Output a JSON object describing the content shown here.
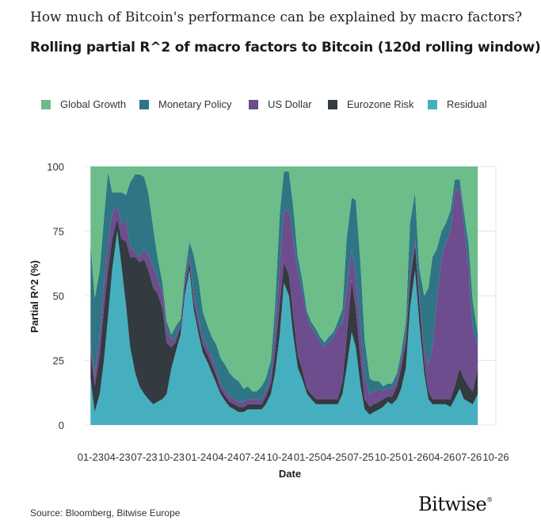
{
  "header": {
    "supertitle": "How much of Bitcoin's performance can be explained by macro factors?",
    "title": "Rolling partial R^2 of macro factors to Bitcoin (120d rolling window)"
  },
  "footer": {
    "source": "Source: Bloomberg, Bitwise Europe",
    "logo_text": "Bitwise",
    "logo_mark": "®"
  },
  "colors": {
    "Global Growth": "#6cbd8a",
    "Monetary Policy": "#2e7585",
    "US Dollar": "#6d4d8e",
    "Eurozone Risk": "#333a40",
    "Residual": "#45afc0"
  },
  "chart_data": {
    "type": "area",
    "title": "Rolling partial R^2 of macro factors to Bitcoin (120d rolling window)",
    "xlabel": "Date",
    "ylabel": "Partial R^2 (%)",
    "ylim": [
      0,
      100
    ],
    "yticks": [
      0,
      25,
      50,
      75,
      100
    ],
    "xlim": [
      "2022-12-15",
      "2026-10-01"
    ],
    "xtick_labels": [
      "01-23",
      "04-23",
      "07-23",
      "10-23",
      "01-24",
      "04-24",
      "07-24",
      "10-24",
      "01-25",
      "04-25",
      "07-25",
      "10-25",
      "01-26",
      "04-26",
      "07-26",
      "10-26"
    ],
    "xtick_dates": [
      "2023-01-01",
      "2023-04-01",
      "2023-07-01",
      "2023-10-01",
      "2024-01-01",
      "2024-04-01",
      "2024-07-01",
      "2024-10-01",
      "2025-01-01",
      "2025-04-01",
      "2025-07-01",
      "2025-10-01",
      "2026-01-01",
      "2026-04-01",
      "2026-07-01",
      "2026-10-01"
    ],
    "grid": true,
    "stacked": true,
    "legend_position": "top",
    "x": [
      "2023-01-01",
      "2023-01-15",
      "2023-02-01",
      "2023-02-15",
      "2023-03-01",
      "2023-03-15",
      "2023-04-01",
      "2023-04-15",
      "2023-05-01",
      "2023-05-15",
      "2023-06-01",
      "2023-06-15",
      "2023-07-01",
      "2023-07-15",
      "2023-08-01",
      "2023-08-15",
      "2023-09-01",
      "2023-09-15",
      "2023-10-01",
      "2023-10-15",
      "2023-11-01",
      "2023-11-15",
      "2023-12-01",
      "2023-12-15",
      "2024-01-01",
      "2024-01-15",
      "2024-02-01",
      "2024-02-15",
      "2024-03-01",
      "2024-03-15",
      "2024-04-01",
      "2024-04-15",
      "2024-05-01",
      "2024-05-15",
      "2024-06-01",
      "2024-06-15",
      "2024-07-01",
      "2024-07-15",
      "2024-08-01",
      "2024-08-15",
      "2024-09-01",
      "2024-09-15",
      "2024-10-01",
      "2024-10-15",
      "2024-11-01",
      "2024-11-15",
      "2024-12-01",
      "2024-12-15",
      "2025-01-01",
      "2025-01-15",
      "2025-02-01",
      "2025-02-15",
      "2025-03-01",
      "2025-03-15",
      "2025-04-01",
      "2025-04-15",
      "2025-05-01",
      "2025-05-15",
      "2025-06-01",
      "2025-06-15",
      "2025-07-01",
      "2025-07-15",
      "2025-08-01",
      "2025-08-15",
      "2025-09-01",
      "2025-09-15",
      "2025-10-01",
      "2025-10-15",
      "2025-11-01",
      "2025-11-15",
      "2025-12-01",
      "2025-12-15",
      "2026-01-01",
      "2026-01-15",
      "2026-02-01",
      "2026-02-15",
      "2026-03-01",
      "2026-03-15",
      "2026-04-01",
      "2026-04-15",
      "2026-05-01",
      "2026-05-15",
      "2026-06-01",
      "2026-06-15",
      "2026-07-01",
      "2026-07-15",
      "2026-08-01"
    ],
    "series": [
      {
        "name": "Residual",
        "values": [
          18,
          5,
          12,
          25,
          42,
          60,
          75,
          62,
          46,
          30,
          20,
          15,
          12,
          10,
          8,
          9,
          10,
          12,
          22,
          28,
          35,
          50,
          60,
          45,
          35,
          28,
          24,
          20,
          16,
          12,
          9,
          7,
          6,
          5,
          5,
          6,
          6,
          6,
          6,
          8,
          12,
          20,
          35,
          55,
          50,
          35,
          22,
          18,
          12,
          10,
          8,
          8,
          8,
          8,
          8,
          8,
          12,
          22,
          36,
          30,
          15,
          6,
          4,
          5,
          6,
          7,
          9,
          8,
          10,
          14,
          22,
          45,
          60,
          40,
          20,
          10,
          8,
          8,
          8,
          8,
          7,
          10,
          14,
          10,
          9,
          8,
          12
        ]
      },
      {
        "name": "Eurozone Risk",
        "values": [
          10,
          10,
          15,
          20,
          18,
          12,
          5,
          10,
          25,
          35,
          45,
          48,
          52,
          50,
          45,
          42,
          35,
          20,
          8,
          4,
          3,
          3,
          3,
          3,
          3,
          3,
          3,
          3,
          3,
          2,
          2,
          2,
          2,
          2,
          2,
          2,
          2,
          2,
          2,
          3,
          4,
          8,
          12,
          8,
          8,
          8,
          5,
          4,
          2,
          2,
          2,
          2,
          2,
          2,
          2,
          2,
          5,
          12,
          20,
          15,
          10,
          4,
          3,
          3,
          3,
          3,
          2,
          3,
          5,
          8,
          10,
          10,
          10,
          8,
          5,
          3,
          2,
          2,
          2,
          2,
          3,
          5,
          8,
          8,
          6,
          5,
          10
        ]
      },
      {
        "name": "US Dollar",
        "values": [
          4,
          4,
          8,
          10,
          10,
          10,
          5,
          6,
          8,
          4,
          2,
          2,
          4,
          6,
          8,
          6,
          6,
          5,
          3,
          2,
          1,
          2,
          3,
          3,
          3,
          3,
          3,
          3,
          2,
          2,
          2,
          2,
          2,
          2,
          2,
          2,
          2,
          2,
          2,
          2,
          3,
          8,
          15,
          20,
          25,
          30,
          32,
          30,
          28,
          26,
          25,
          22,
          20,
          22,
          24,
          28,
          22,
          18,
          12,
          12,
          12,
          8,
          5,
          5,
          5,
          3,
          3,
          3,
          3,
          3,
          3,
          3,
          2,
          3,
          5,
          10,
          20,
          38,
          55,
          60,
          65,
          75,
          70,
          60,
          45,
          25,
          8
        ]
      },
      {
        "name": "Monetary Policy",
        "values": [
          38,
          30,
          25,
          25,
          28,
          8,
          5,
          12,
          10,
          25,
          30,
          32,
          28,
          24,
          15,
          8,
          4,
          3,
          2,
          4,
          2,
          3,
          5,
          15,
          15,
          10,
          8,
          8,
          10,
          10,
          10,
          9,
          8,
          8,
          5,
          5,
          3,
          3,
          5,
          5,
          6,
          10,
          20,
          15,
          15,
          12,
          6,
          5,
          2,
          2,
          2,
          2,
          2,
          2,
          2,
          2,
          6,
          20,
          20,
          30,
          25,
          15,
          6,
          4,
          3,
          2,
          2,
          2,
          2,
          3,
          5,
          20,
          18,
          10,
          20,
          30,
          35,
          20,
          10,
          8,
          8,
          5,
          3,
          5,
          10,
          10,
          5
        ]
      },
      {
        "name": "Global Growth",
        "values": [
          30,
          51,
          40,
          20,
          2,
          10,
          10,
          10,
          11,
          6,
          3,
          3,
          4,
          10,
          24,
          35,
          45,
          60,
          65,
          62,
          59,
          42,
          29,
          34,
          44,
          56,
          62,
          66,
          69,
          74,
          77,
          80,
          82,
          83,
          86,
          85,
          87,
          87,
          85,
          82,
          75,
          54,
          18,
          2,
          2,
          15,
          35,
          43,
          56,
          60,
          63,
          66,
          68,
          66,
          64,
          60,
          55,
          28,
          12,
          13,
          38,
          67,
          82,
          83,
          83,
          85,
          84,
          84,
          80,
          72,
          60,
          22,
          10,
          39,
          50,
          47,
          35,
          32,
          25,
          22,
          17,
          5,
          5,
          17,
          30,
          52,
          65
        ]
      }
    ]
  }
}
